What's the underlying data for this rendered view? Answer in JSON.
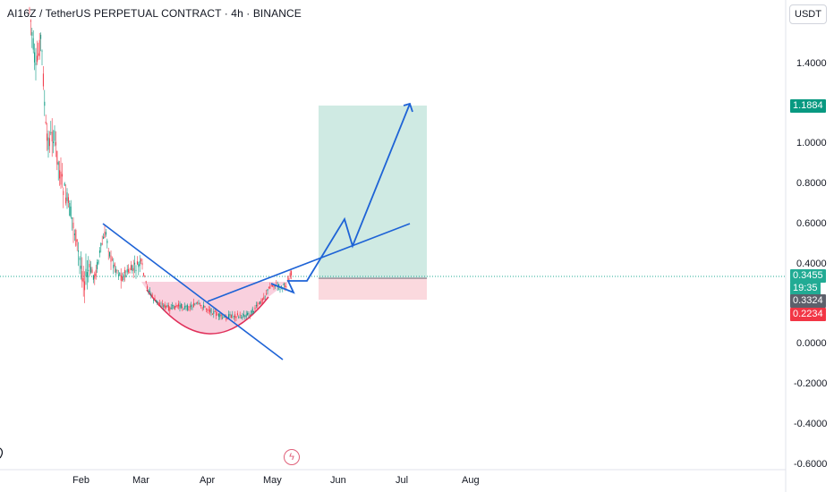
{
  "symbol": {
    "title": "AI16Z / TetherUS PERPETUAL CONTRACT · 4h · BINANCE"
  },
  "axis": {
    "currency": "USDT",
    "price_ticks": [
      "1.4000",
      "1.0000",
      "0.8000",
      "0.6000",
      "0.4000",
      "0.0000",
      "-0.2000",
      "-0.4000",
      "-0.6000"
    ],
    "time_ticks": [
      "Feb",
      "Mar",
      "Apr",
      "May",
      "Jun",
      "Jul",
      "Aug"
    ]
  },
  "labels": {
    "target": {
      "value": "1.1884",
      "color": "#089981"
    },
    "last_price": {
      "value": "0.3455",
      "color": "#22ab94"
    },
    "countdown": {
      "value": "19:35",
      "color": "#22ab94"
    },
    "entry": {
      "value": "0.3324",
      "color": "#5d606b"
    },
    "stop": {
      "value": "0.2234",
      "color": "#f23645"
    }
  },
  "events": {
    "icon": "lightning-icon",
    "glyph": "ϟ"
  },
  "colors": {
    "candle_up": "#089981",
    "candle_down": "#f23645",
    "drawing": "#1e63d6",
    "cup_fill": "#f8c8d8",
    "cup_stroke": "#e0305a",
    "target_zone": "#cfeae3",
    "stop_zone": "#fbd9de"
  }
}
